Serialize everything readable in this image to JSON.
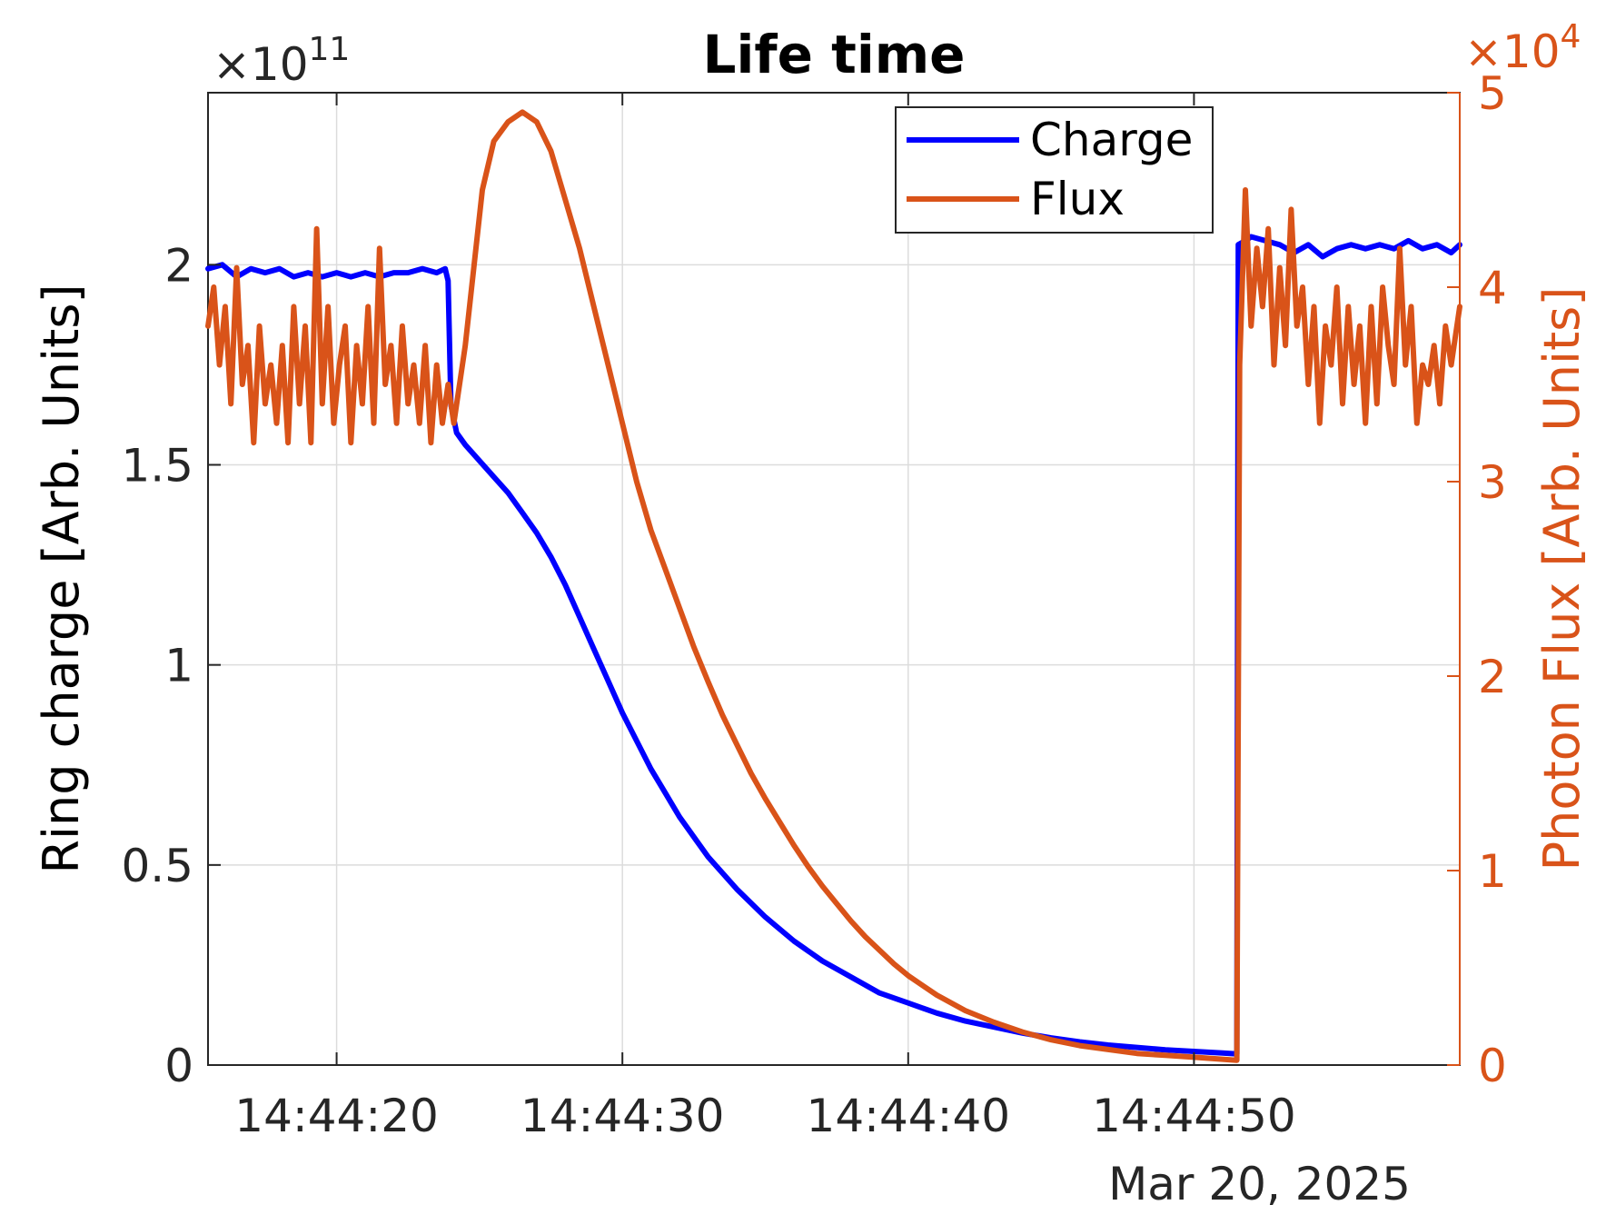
{
  "chart_data": {
    "type": "line",
    "title": "Life time",
    "xlabel": "",
    "date_label": "Mar 20, 2025",
    "x_ticks": [
      {
        "t": 20,
        "label": "14:44:20"
      },
      {
        "t": 30,
        "label": "14:44:30"
      },
      {
        "t": 40,
        "label": "14:44:40"
      },
      {
        "t": 50,
        "label": "14:44:50"
      }
    ],
    "xlim_labels": [
      "14:44:15.5",
      "14:44:59.3"
    ],
    "left_axis": {
      "label": "Ring charge [Arb. Units]",
      "multiplier": "×10^11",
      "multiplier_base": "×10",
      "multiplier_exp": "11",
      "ylim": [
        0,
        2.43
      ],
      "ticks": [
        {
          "v": 0,
          "label": "0"
        },
        {
          "v": 0.5,
          "label": "0.5"
        },
        {
          "v": 1,
          "label": "1"
        },
        {
          "v": 1.5,
          "label": "1.5"
        },
        {
          "v": 2,
          "label": "2"
        }
      ]
    },
    "right_axis": {
      "label": "Photon Flux [Arb. Units]",
      "multiplier": "×10^4",
      "multiplier_base": "×10",
      "multiplier_exp": "4",
      "ylim": [
        0,
        5
      ],
      "ticks": [
        {
          "v": 0,
          "label": "0"
        },
        {
          "v": 1,
          "label": "1"
        },
        {
          "v": 2,
          "label": "2"
        },
        {
          "v": 3,
          "label": "3"
        },
        {
          "v": 4,
          "label": "4"
        },
        {
          "v": 5,
          "label": "5"
        }
      ]
    },
    "grid": true,
    "legend_position": "top-right",
    "series": [
      {
        "name": "Charge",
        "axis": "left",
        "color": "#0000ff",
        "points": [
          [
            15.5,
            1.99
          ],
          [
            16,
            2.0
          ],
          [
            16.5,
            1.97
          ],
          [
            17,
            1.99
          ],
          [
            17.5,
            1.98
          ],
          [
            18,
            1.99
          ],
          [
            18.5,
            1.97
          ],
          [
            19,
            1.98
          ],
          [
            19.5,
            1.97
          ],
          [
            20,
            1.98
          ],
          [
            20.5,
            1.97
          ],
          [
            21,
            1.98
          ],
          [
            21.5,
            1.97
          ],
          [
            22,
            1.98
          ],
          [
            22.5,
            1.98
          ],
          [
            23,
            1.99
          ],
          [
            23.5,
            1.98
          ],
          [
            23.8,
            1.99
          ],
          [
            23.9,
            1.96
          ],
          [
            24,
            1.65
          ],
          [
            24.2,
            1.58
          ],
          [
            24.5,
            1.55
          ],
          [
            25,
            1.51
          ],
          [
            25.5,
            1.47
          ],
          [
            26,
            1.43
          ],
          [
            26.5,
            1.38
          ],
          [
            27,
            1.33
          ],
          [
            27.5,
            1.27
          ],
          [
            28,
            1.2
          ],
          [
            28.5,
            1.12
          ],
          [
            29,
            1.04
          ],
          [
            29.5,
            0.96
          ],
          [
            30,
            0.88
          ],
          [
            30.5,
            0.81
          ],
          [
            31,
            0.74
          ],
          [
            31.5,
            0.68
          ],
          [
            32,
            0.62
          ],
          [
            33,
            0.52
          ],
          [
            34,
            0.44
          ],
          [
            35,
            0.37
          ],
          [
            36,
            0.31
          ],
          [
            37,
            0.26
          ],
          [
            38,
            0.22
          ],
          [
            39,
            0.18
          ],
          [
            40,
            0.155
          ],
          [
            41,
            0.13
          ],
          [
            42,
            0.11
          ],
          [
            43,
            0.095
          ],
          [
            44,
            0.08
          ],
          [
            45,
            0.068
          ],
          [
            46,
            0.058
          ],
          [
            47,
            0.05
          ],
          [
            48,
            0.044
          ],
          [
            49,
            0.038
          ],
          [
            50,
            0.034
          ],
          [
            51,
            0.03
          ],
          [
            51.5,
            0.028
          ],
          [
            51.55,
            2.05
          ],
          [
            51.8,
            2.06
          ],
          [
            52,
            2.07
          ],
          [
            52.5,
            2.06
          ],
          [
            53,
            2.05
          ],
          [
            53.5,
            2.03
          ],
          [
            54,
            2.05
          ],
          [
            54.5,
            2.02
          ],
          [
            55,
            2.04
          ],
          [
            55.5,
            2.05
          ],
          [
            56,
            2.04
          ],
          [
            56.5,
            2.05
          ],
          [
            57,
            2.04
          ],
          [
            57.5,
            2.06
          ],
          [
            58,
            2.04
          ],
          [
            58.5,
            2.05
          ],
          [
            59,
            2.03
          ],
          [
            59.3,
            2.05
          ]
        ]
      },
      {
        "name": "Flux",
        "axis": "right",
        "color": "#d95319",
        "points": [
          [
            15.5,
            3.8
          ],
          [
            15.7,
            4.0
          ],
          [
            15.9,
            3.6
          ],
          [
            16.1,
            3.9
          ],
          [
            16.3,
            3.4
          ],
          [
            16.5,
            4.1
          ],
          [
            16.7,
            3.5
          ],
          [
            16.9,
            3.7
          ],
          [
            17.1,
            3.2
          ],
          [
            17.3,
            3.8
          ],
          [
            17.5,
            3.4
          ],
          [
            17.7,
            3.6
          ],
          [
            17.9,
            3.3
          ],
          [
            18.1,
            3.7
          ],
          [
            18.3,
            3.2
          ],
          [
            18.5,
            3.9
          ],
          [
            18.7,
            3.4
          ],
          [
            18.9,
            3.8
          ],
          [
            19.1,
            3.2
          ],
          [
            19.3,
            4.3
          ],
          [
            19.5,
            3.4
          ],
          [
            19.7,
            3.9
          ],
          [
            19.9,
            3.3
          ],
          [
            20.1,
            3.6
          ],
          [
            20.3,
            3.8
          ],
          [
            20.5,
            3.2
          ],
          [
            20.7,
            3.7
          ],
          [
            20.9,
            3.4
          ],
          [
            21.1,
            3.9
          ],
          [
            21.3,
            3.3
          ],
          [
            21.5,
            4.2
          ],
          [
            21.7,
            3.5
          ],
          [
            21.9,
            3.7
          ],
          [
            22.1,
            3.3
          ],
          [
            22.3,
            3.8
          ],
          [
            22.5,
            3.4
          ],
          [
            22.7,
            3.6
          ],
          [
            22.9,
            3.3
          ],
          [
            23.1,
            3.7
          ],
          [
            23.3,
            3.2
          ],
          [
            23.5,
            3.6
          ],
          [
            23.7,
            3.3
          ],
          [
            23.9,
            3.5
          ],
          [
            24.1,
            3.3
          ],
          [
            24.5,
            3.7
          ],
          [
            24.8,
            4.1
          ],
          [
            25.1,
            4.5
          ],
          [
            25.5,
            4.75
          ],
          [
            26,
            4.85
          ],
          [
            26.5,
            4.9
          ],
          [
            27,
            4.85
          ],
          [
            27.5,
            4.7
          ],
          [
            28,
            4.45
          ],
          [
            28.5,
            4.2
          ],
          [
            29,
            3.9
          ],
          [
            29.5,
            3.6
          ],
          [
            30,
            3.3
          ],
          [
            30.5,
            3.0
          ],
          [
            31,
            2.75
          ],
          [
            31.5,
            2.55
          ],
          [
            32,
            2.35
          ],
          [
            32.5,
            2.15
          ],
          [
            33,
            1.97
          ],
          [
            33.5,
            1.8
          ],
          [
            34,
            1.65
          ],
          [
            34.5,
            1.5
          ],
          [
            35,
            1.37
          ],
          [
            35.5,
            1.25
          ],
          [
            36,
            1.13
          ],
          [
            36.5,
            1.02
          ],
          [
            37,
            0.92
          ],
          [
            37.5,
            0.83
          ],
          [
            38,
            0.74
          ],
          [
            38.5,
            0.66
          ],
          [
            39,
            0.59
          ],
          [
            39.5,
            0.52
          ],
          [
            40,
            0.46
          ],
          [
            40.5,
            0.41
          ],
          [
            41,
            0.36
          ],
          [
            42,
            0.28
          ],
          [
            43,
            0.22
          ],
          [
            44,
            0.17
          ],
          [
            45,
            0.13
          ],
          [
            46,
            0.1
          ],
          [
            47,
            0.08
          ],
          [
            48,
            0.06
          ],
          [
            49,
            0.05
          ],
          [
            50,
            0.04
          ],
          [
            51,
            0.03
          ],
          [
            51.5,
            0.025
          ],
          [
            51.6,
            3.6
          ],
          [
            51.8,
            4.5
          ],
          [
            52,
            3.8
          ],
          [
            52.2,
            4.2
          ],
          [
            52.4,
            3.9
          ],
          [
            52.6,
            4.3
          ],
          [
            52.8,
            3.6
          ],
          [
            53,
            4.1
          ],
          [
            53.2,
            3.7
          ],
          [
            53.4,
            4.4
          ],
          [
            53.6,
            3.8
          ],
          [
            53.8,
            4.0
          ],
          [
            54,
            3.5
          ],
          [
            54.2,
            3.9
          ],
          [
            54.4,
            3.3
          ],
          [
            54.6,
            3.8
          ],
          [
            54.8,
            3.6
          ],
          [
            55,
            4.0
          ],
          [
            55.2,
            3.4
          ],
          [
            55.4,
            3.9
          ],
          [
            55.6,
            3.5
          ],
          [
            55.8,
            3.8
          ],
          [
            56,
            3.3
          ],
          [
            56.2,
            3.9
          ],
          [
            56.4,
            3.4
          ],
          [
            56.6,
            4.0
          ],
          [
            56.8,
            3.7
          ],
          [
            57,
            3.5
          ],
          [
            57.2,
            4.2
          ],
          [
            57.4,
            3.6
          ],
          [
            57.6,
            3.9
          ],
          [
            57.8,
            3.3
          ],
          [
            58,
            3.6
          ],
          [
            58.2,
            3.5
          ],
          [
            58.4,
            3.7
          ],
          [
            58.6,
            3.4
          ],
          [
            58.8,
            3.8
          ],
          [
            59,
            3.6
          ],
          [
            59.3,
            3.9
          ]
        ]
      }
    ]
  },
  "legend": {
    "items": [
      {
        "label": "Charge",
        "color": "#0000ff"
      },
      {
        "label": "Flux",
        "color": "#d95319"
      }
    ]
  }
}
